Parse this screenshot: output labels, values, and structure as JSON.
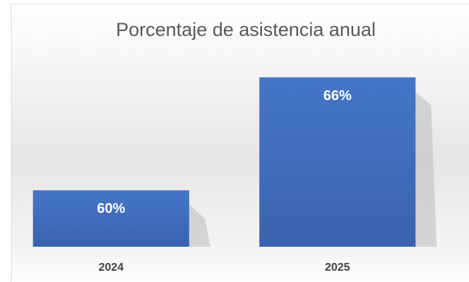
{
  "chart_data": {
    "type": "bar",
    "title": "Porcentaje de asistencia anual",
    "categories": [
      "2024",
      "2025"
    ],
    "values": [
      60,
      66
    ],
    "value_labels": [
      "60%",
      "66%"
    ],
    "color": "#4472c4",
    "ylim": [
      57,
      67
    ]
  }
}
